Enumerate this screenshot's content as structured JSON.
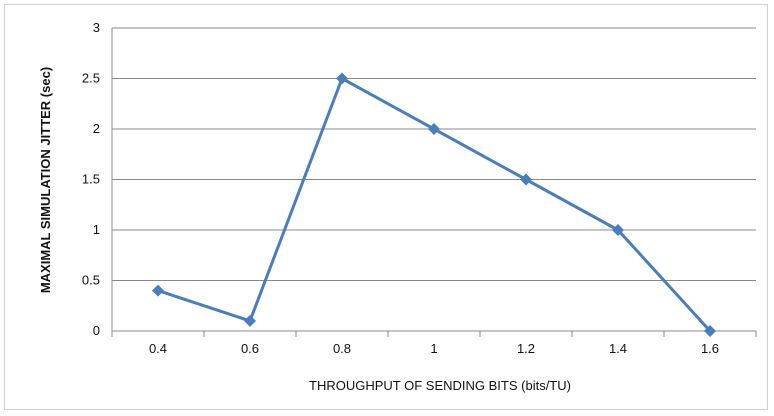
{
  "chart_data": {
    "type": "line",
    "title": "",
    "xlabel": "THROUGHPUT OF SENDING BITS (bits/TU)",
    "ylabel": "MAXIMAL SIMULATION JITTER (sec)",
    "categories": [
      "0.4",
      "0.6",
      "0.8",
      "1",
      "1.2",
      "1.4",
      "1.6"
    ],
    "x_tick_labels": [
      "0.4",
      "0.6",
      "0.8",
      "1",
      "1.2",
      "1.4",
      "1.6"
    ],
    "y_tick_labels": [
      "0",
      "0.5",
      "1",
      "1.5",
      "2",
      "2.5",
      "3"
    ],
    "ylim": [
      0,
      3
    ],
    "grid": true,
    "legend": "none",
    "series": [
      {
        "values": [
          0.4,
          0.1,
          2.5,
          2.0,
          1.5,
          1.0,
          0.0
        ],
        "color": "#4a7ebb"
      }
    ],
    "gridline_color": "#888888",
    "axis_color": "#888888"
  }
}
